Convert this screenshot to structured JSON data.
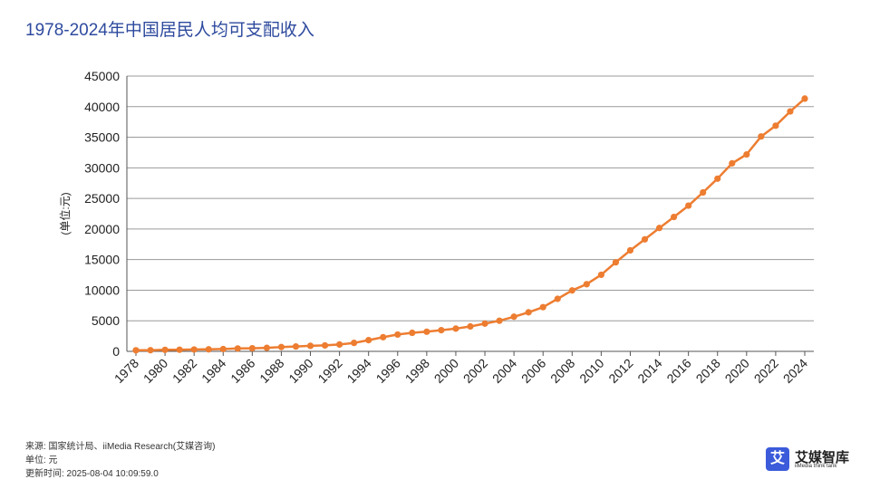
{
  "header": {
    "title": "1978-2024年中国居民人均可支配收入"
  },
  "chart_data": {
    "type": "line",
    "title": "1978-2024年中国居民人均可支配收入",
    "xlabel": "",
    "ylabel": "(单位:元)",
    "ylim": [
      0,
      45000
    ],
    "yticks": [
      0,
      5000,
      10000,
      15000,
      20000,
      25000,
      30000,
      35000,
      40000,
      45000
    ],
    "x": [
      1978,
      1979,
      1980,
      1981,
      1982,
      1983,
      1984,
      1985,
      1986,
      1987,
      1988,
      1989,
      1990,
      1991,
      1992,
      1993,
      1994,
      1995,
      1996,
      1997,
      1998,
      1999,
      2000,
      2001,
      2002,
      2003,
      2004,
      2005,
      2006,
      2007,
      2008,
      2009,
      2010,
      2011,
      2012,
      2013,
      2014,
      2015,
      2016,
      2017,
      2018,
      2019,
      2020,
      2021,
      2022,
      2023,
      2024
    ],
    "xticklabels": [
      "1978",
      "1980",
      "1982",
      "1984",
      "1986",
      "1988",
      "1990",
      "1992",
      "1994",
      "1996",
      "1998",
      "2000",
      "2002",
      "2004",
      "2006",
      "2008",
      "2010",
      "2012",
      "2014",
      "2016",
      "2018",
      "2020",
      "2022",
      "2024"
    ],
    "series": [
      {
        "name": "居民人均可支配收入",
        "color": "#ed7d31",
        "values": [
          171,
          184,
          247,
          268,
          306,
          330,
          380,
          469,
          510,
          576,
          703,
          793,
          904,
          974,
          1124,
          1383,
          1836,
          2312,
          2749,
          3032,
          3209,
          3461,
          3721,
          4070,
          4532,
          5007,
          5661,
          6385,
          7229,
          8584,
          9957,
          10977,
          12520,
          14551,
          16510,
          18311,
          20167,
          21966,
          23821,
          25974,
          28228,
          30733,
          32189,
          35128,
          36883,
          39218,
          41314
        ]
      }
    ],
    "grid": true
  },
  "footer": {
    "source": "来源: 国家统计局、iiMedia Research(艾媒咨询)",
    "unit": "单位: 元",
    "updated": "更新时间: 2025-08-04 10:09:59.0"
  },
  "logo": {
    "mark": "艾",
    "name": "艾媒智库",
    "subtitle": "iiMedia think tank"
  }
}
